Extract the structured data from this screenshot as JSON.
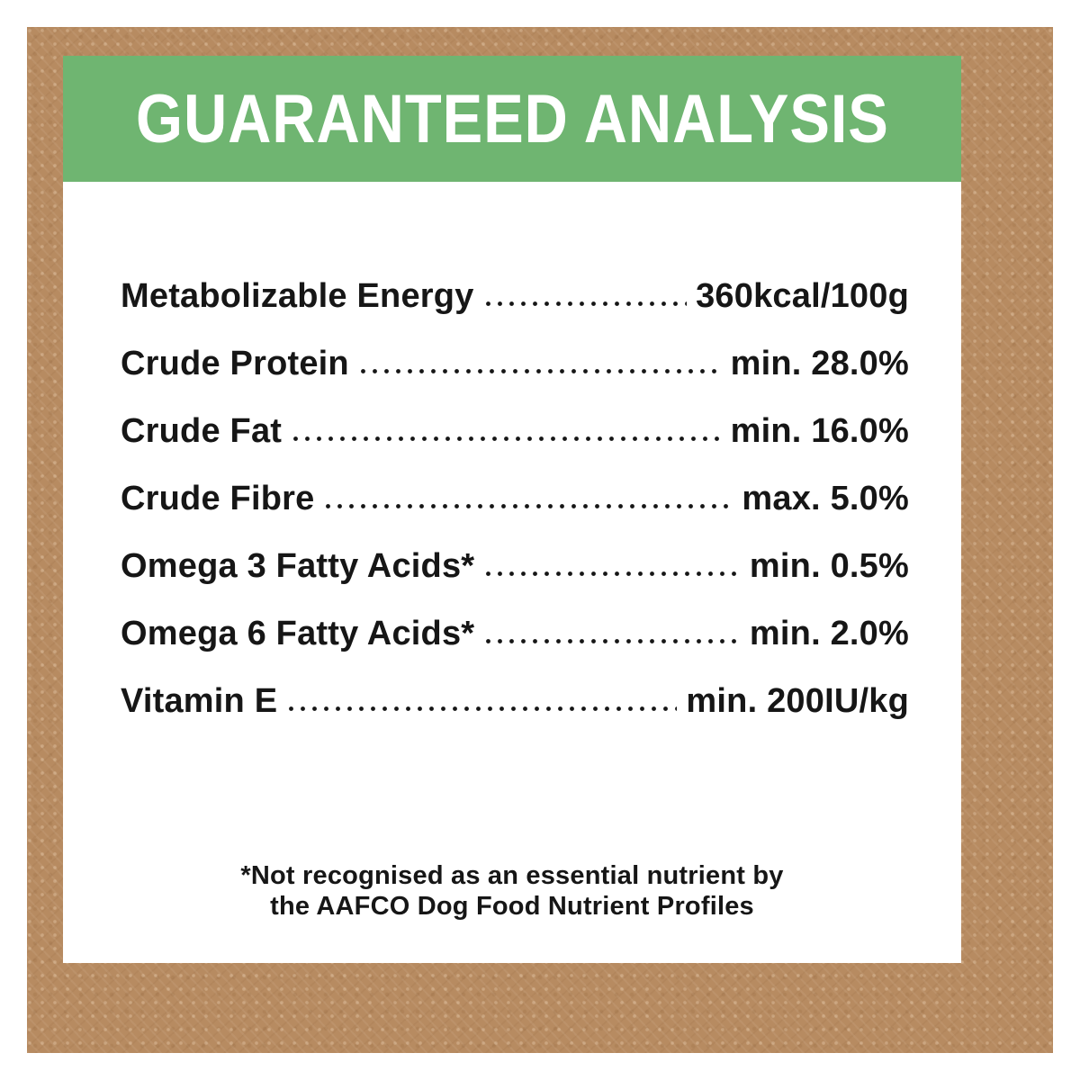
{
  "header": {
    "title": "GUARANTEED ANALYSIS"
  },
  "analysis": {
    "rows": [
      {
        "label": "Metabolizable Energy",
        "value": "360kcal/100g"
      },
      {
        "label": "Crude Protein",
        "value": "min. 28.0%"
      },
      {
        "label": "Crude Fat",
        "value": "min. 16.0%"
      },
      {
        "label": "Crude Fibre",
        "value": "max. 5.0%"
      },
      {
        "label": "Omega 3 Fatty Acids*",
        "value": "min. 0.5%"
      },
      {
        "label": "Omega 6 Fatty Acids*",
        "value": "min. 2.0%"
      },
      {
        "label": "Vitamin E",
        "value": "min. 200IU/kg"
      }
    ]
  },
  "footnote": {
    "line1": "*Not recognised as an essential nutrient by",
    "line2": "the AAFCO Dog Food Nutrient Profiles"
  },
  "colors": {
    "header_green": "#6fb571",
    "border_brown": "#b78b61",
    "text_dark": "#161616"
  }
}
